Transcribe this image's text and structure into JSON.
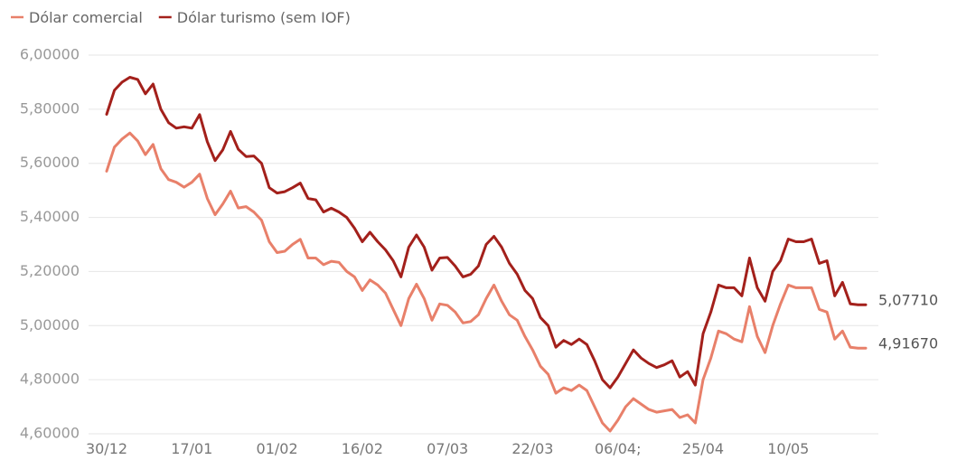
{
  "chart_data": {
    "type": "line",
    "y_ticks": [
      "6,00000",
      "5,80000",
      "5,60000",
      "5,40000",
      "5,20000",
      "5,00000",
      "4,80000",
      "4,60000"
    ],
    "ylim": [
      4.6,
      6.0
    ],
    "x_ticks": [
      {
        "label": "30/12",
        "index": 0
      },
      {
        "label": "17/01",
        "index": 11
      },
      {
        "label": "01/02",
        "index": 22
      },
      {
        "label": "16/02",
        "index": 33
      },
      {
        "label": "07/03",
        "index": 44
      },
      {
        "label": "22/03",
        "index": 55
      },
      {
        "label": "06/04;",
        "index": 66
      },
      {
        "label": "25/04",
        "index": 77
      },
      {
        "label": "10/05",
        "index": 88
      }
    ],
    "point_count": 99,
    "series": [
      {
        "name": "Dólar comercial",
        "color": "#e8806a",
        "end_label": "4,91670",
        "values": [
          5.571,
          5.66,
          5.69,
          5.712,
          5.683,
          5.632,
          5.67,
          5.58,
          5.54,
          5.53,
          5.512,
          5.53,
          5.56,
          5.47,
          5.41,
          5.45,
          5.497,
          5.435,
          5.44,
          5.42,
          5.39,
          5.31,
          5.27,
          5.275,
          5.3,
          5.319,
          5.25,
          5.25,
          5.225,
          5.238,
          5.234,
          5.2,
          5.18,
          5.13,
          5.169,
          5.15,
          5.12,
          5.06,
          5.0,
          5.1,
          5.153,
          5.1,
          5.02,
          5.08,
          5.075,
          5.05,
          5.01,
          5.015,
          5.04,
          5.1,
          5.15,
          5.09,
          5.04,
          5.02,
          4.96,
          4.91,
          4.85,
          4.82,
          4.75,
          4.77,
          4.76,
          4.78,
          4.76,
          4.7,
          4.64,
          4.61,
          4.65,
          4.7,
          4.73,
          4.71,
          4.69,
          4.68,
          4.685,
          4.69,
          4.66,
          4.67,
          4.64,
          4.8,
          4.88,
          4.98,
          4.97,
          4.95,
          4.94,
          5.07,
          4.96,
          4.9,
          5.0,
          5.08,
          5.15,
          5.14,
          5.14,
          5.14,
          5.06,
          5.05,
          4.95,
          4.98,
          4.92,
          4.9167,
          4.9167
        ]
      },
      {
        "name": "Dólar turismo (sem IOF)",
        "color": "#a3201b",
        "end_label": "5,07710",
        "values": [
          5.781,
          5.87,
          5.9,
          5.918,
          5.91,
          5.857,
          5.893,
          5.8,
          5.75,
          5.73,
          5.735,
          5.73,
          5.78,
          5.68,
          5.61,
          5.65,
          5.718,
          5.652,
          5.625,
          5.627,
          5.6,
          5.51,
          5.49,
          5.495,
          5.51,
          5.527,
          5.47,
          5.465,
          5.42,
          5.434,
          5.42,
          5.4,
          5.36,
          5.31,
          5.345,
          5.31,
          5.28,
          5.24,
          5.18,
          5.29,
          5.335,
          5.29,
          5.205,
          5.25,
          5.252,
          5.22,
          5.18,
          5.19,
          5.22,
          5.3,
          5.33,
          5.29,
          5.23,
          5.19,
          5.13,
          5.1,
          5.03,
          5.0,
          4.92,
          4.945,
          4.93,
          4.95,
          4.93,
          4.87,
          4.8,
          4.77,
          4.81,
          4.86,
          4.91,
          4.88,
          4.86,
          4.845,
          4.855,
          4.87,
          4.81,
          4.83,
          4.78,
          4.97,
          5.05,
          5.15,
          5.14,
          5.14,
          5.11,
          5.25,
          5.14,
          5.09,
          5.2,
          5.24,
          5.32,
          5.31,
          5.31,
          5.32,
          5.23,
          5.24,
          5.11,
          5.16,
          5.08,
          5.0771,
          5.0771
        ]
      }
    ],
    "legend_position": "top-left",
    "grid": true
  }
}
